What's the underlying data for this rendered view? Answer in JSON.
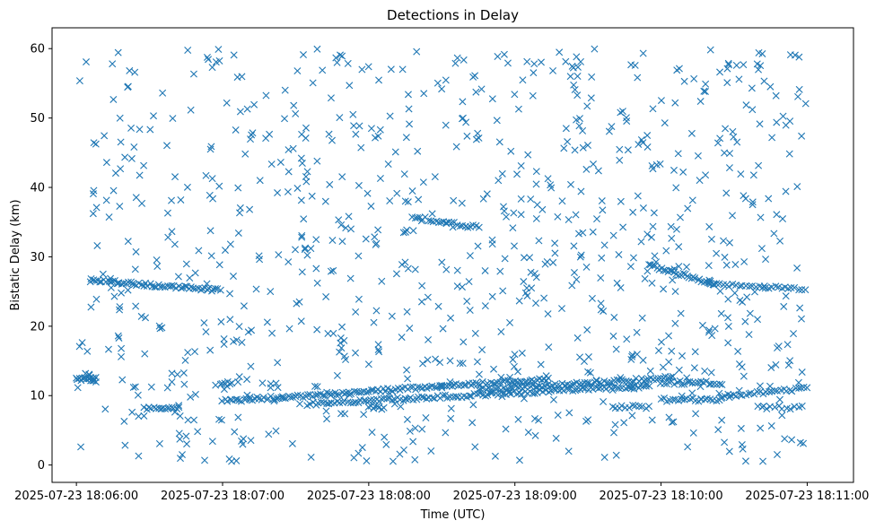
{
  "chart_data": {
    "type": "scatter",
    "title": "Detections in Delay",
    "xlabel": "Time (UTC)",
    "ylabel": "Bistatic Delay (km)",
    "marker": "x",
    "color": "#1f77b4",
    "grid": false,
    "xlim": [
      "2025-07-23 18:05:50",
      "2025-07-23 18:11:19"
    ],
    "ylim": [
      -2.5,
      63
    ],
    "x_ticks": [
      "2025-07-23 18:06:00",
      "2025-07-23 18:07:00",
      "2025-07-23 18:08:00",
      "2025-07-23 18:09:00",
      "2025-07-23 18:10:00",
      "2025-07-23 18:11:00"
    ],
    "y_ticks": [
      0,
      10,
      20,
      30,
      40,
      50,
      60
    ],
    "tracks": [
      {
        "start": "2025-07-23 18:06:00",
        "end": "2025-07-23 18:06:08",
        "delay_start": 12.4,
        "delay_end": 12.4,
        "points": 14
      },
      {
        "start": "2025-07-23 18:06:05",
        "end": "2025-07-23 18:06:08",
        "delay_start": 13.2,
        "delay_end": 12.2,
        "points": 6
      },
      {
        "start": "2025-07-23 18:06:06",
        "end": "2025-07-23 18:06:59",
        "delay_start": 26.6,
        "delay_end": 25.2,
        "points": 60
      },
      {
        "start": "2025-07-23 18:06:28",
        "end": "2025-07-23 18:06:42",
        "delay_start": 8.2,
        "delay_end": 8.3,
        "points": 16
      },
      {
        "start": "2025-07-23 18:06:59",
        "end": "2025-07-23 18:07:04",
        "delay_start": 11.8,
        "delay_end": 11.8,
        "points": 6
      },
      {
        "start": "2025-07-23 18:07:00",
        "end": "2025-07-23 18:09:14",
        "delay_start": 9.2,
        "delay_end": 12.4,
        "points": 135
      },
      {
        "start": "2025-07-23 18:07:35",
        "end": "2025-07-23 18:09:55",
        "delay_start": 8.8,
        "delay_end": 11.4,
        "points": 130
      },
      {
        "start": "2025-07-23 18:08:00",
        "end": "2025-07-23 18:08:06",
        "delay_start": 8.3,
        "delay_end": 8.2,
        "points": 8
      },
      {
        "start": "2025-07-23 18:08:18",
        "end": "2025-07-23 18:08:45",
        "delay_start": 35.8,
        "delay_end": 34.2,
        "points": 26
      },
      {
        "start": "2025-07-23 18:08:45",
        "end": "2025-07-23 18:10:05",
        "delay_start": 10.8,
        "delay_end": 12.6,
        "points": 80
      },
      {
        "start": "2025-07-23 18:09:40",
        "end": "2025-07-23 18:09:55",
        "delay_start": 8.4,
        "delay_end": 8.4,
        "points": 12
      },
      {
        "start": "2025-07-23 18:09:55",
        "end": "2025-07-23 18:10:22",
        "delay_start": 28.8,
        "delay_end": 26.0,
        "points": 32
      },
      {
        "start": "2025-07-23 18:10:00",
        "end": "2025-07-23 18:10:25",
        "delay_start": 9.4,
        "delay_end": 9.4,
        "points": 22
      },
      {
        "start": "2025-07-23 18:10:00",
        "end": "2025-07-23 18:10:25",
        "delay_start": 11.9,
        "delay_end": 11.8,
        "points": 24
      },
      {
        "start": "2025-07-23 18:10:20",
        "end": "2025-07-23 18:10:59",
        "delay_start": 26.0,
        "delay_end": 25.4,
        "points": 30
      },
      {
        "start": "2025-07-23 18:10:25",
        "end": "2025-07-23 18:11:00",
        "delay_start": 9.9,
        "delay_end": 11.0,
        "points": 30
      },
      {
        "start": "2025-07-23 18:10:40",
        "end": "2025-07-23 18:10:58",
        "delay_start": 8.3,
        "delay_end": 8.3,
        "points": 12
      }
    ],
    "clutter": {
      "start": "2025-07-23 18:06:00",
      "end": "2025-07-23 18:11:00",
      "delay_min": 0.5,
      "delay_max": 60,
      "points": 900
    }
  }
}
